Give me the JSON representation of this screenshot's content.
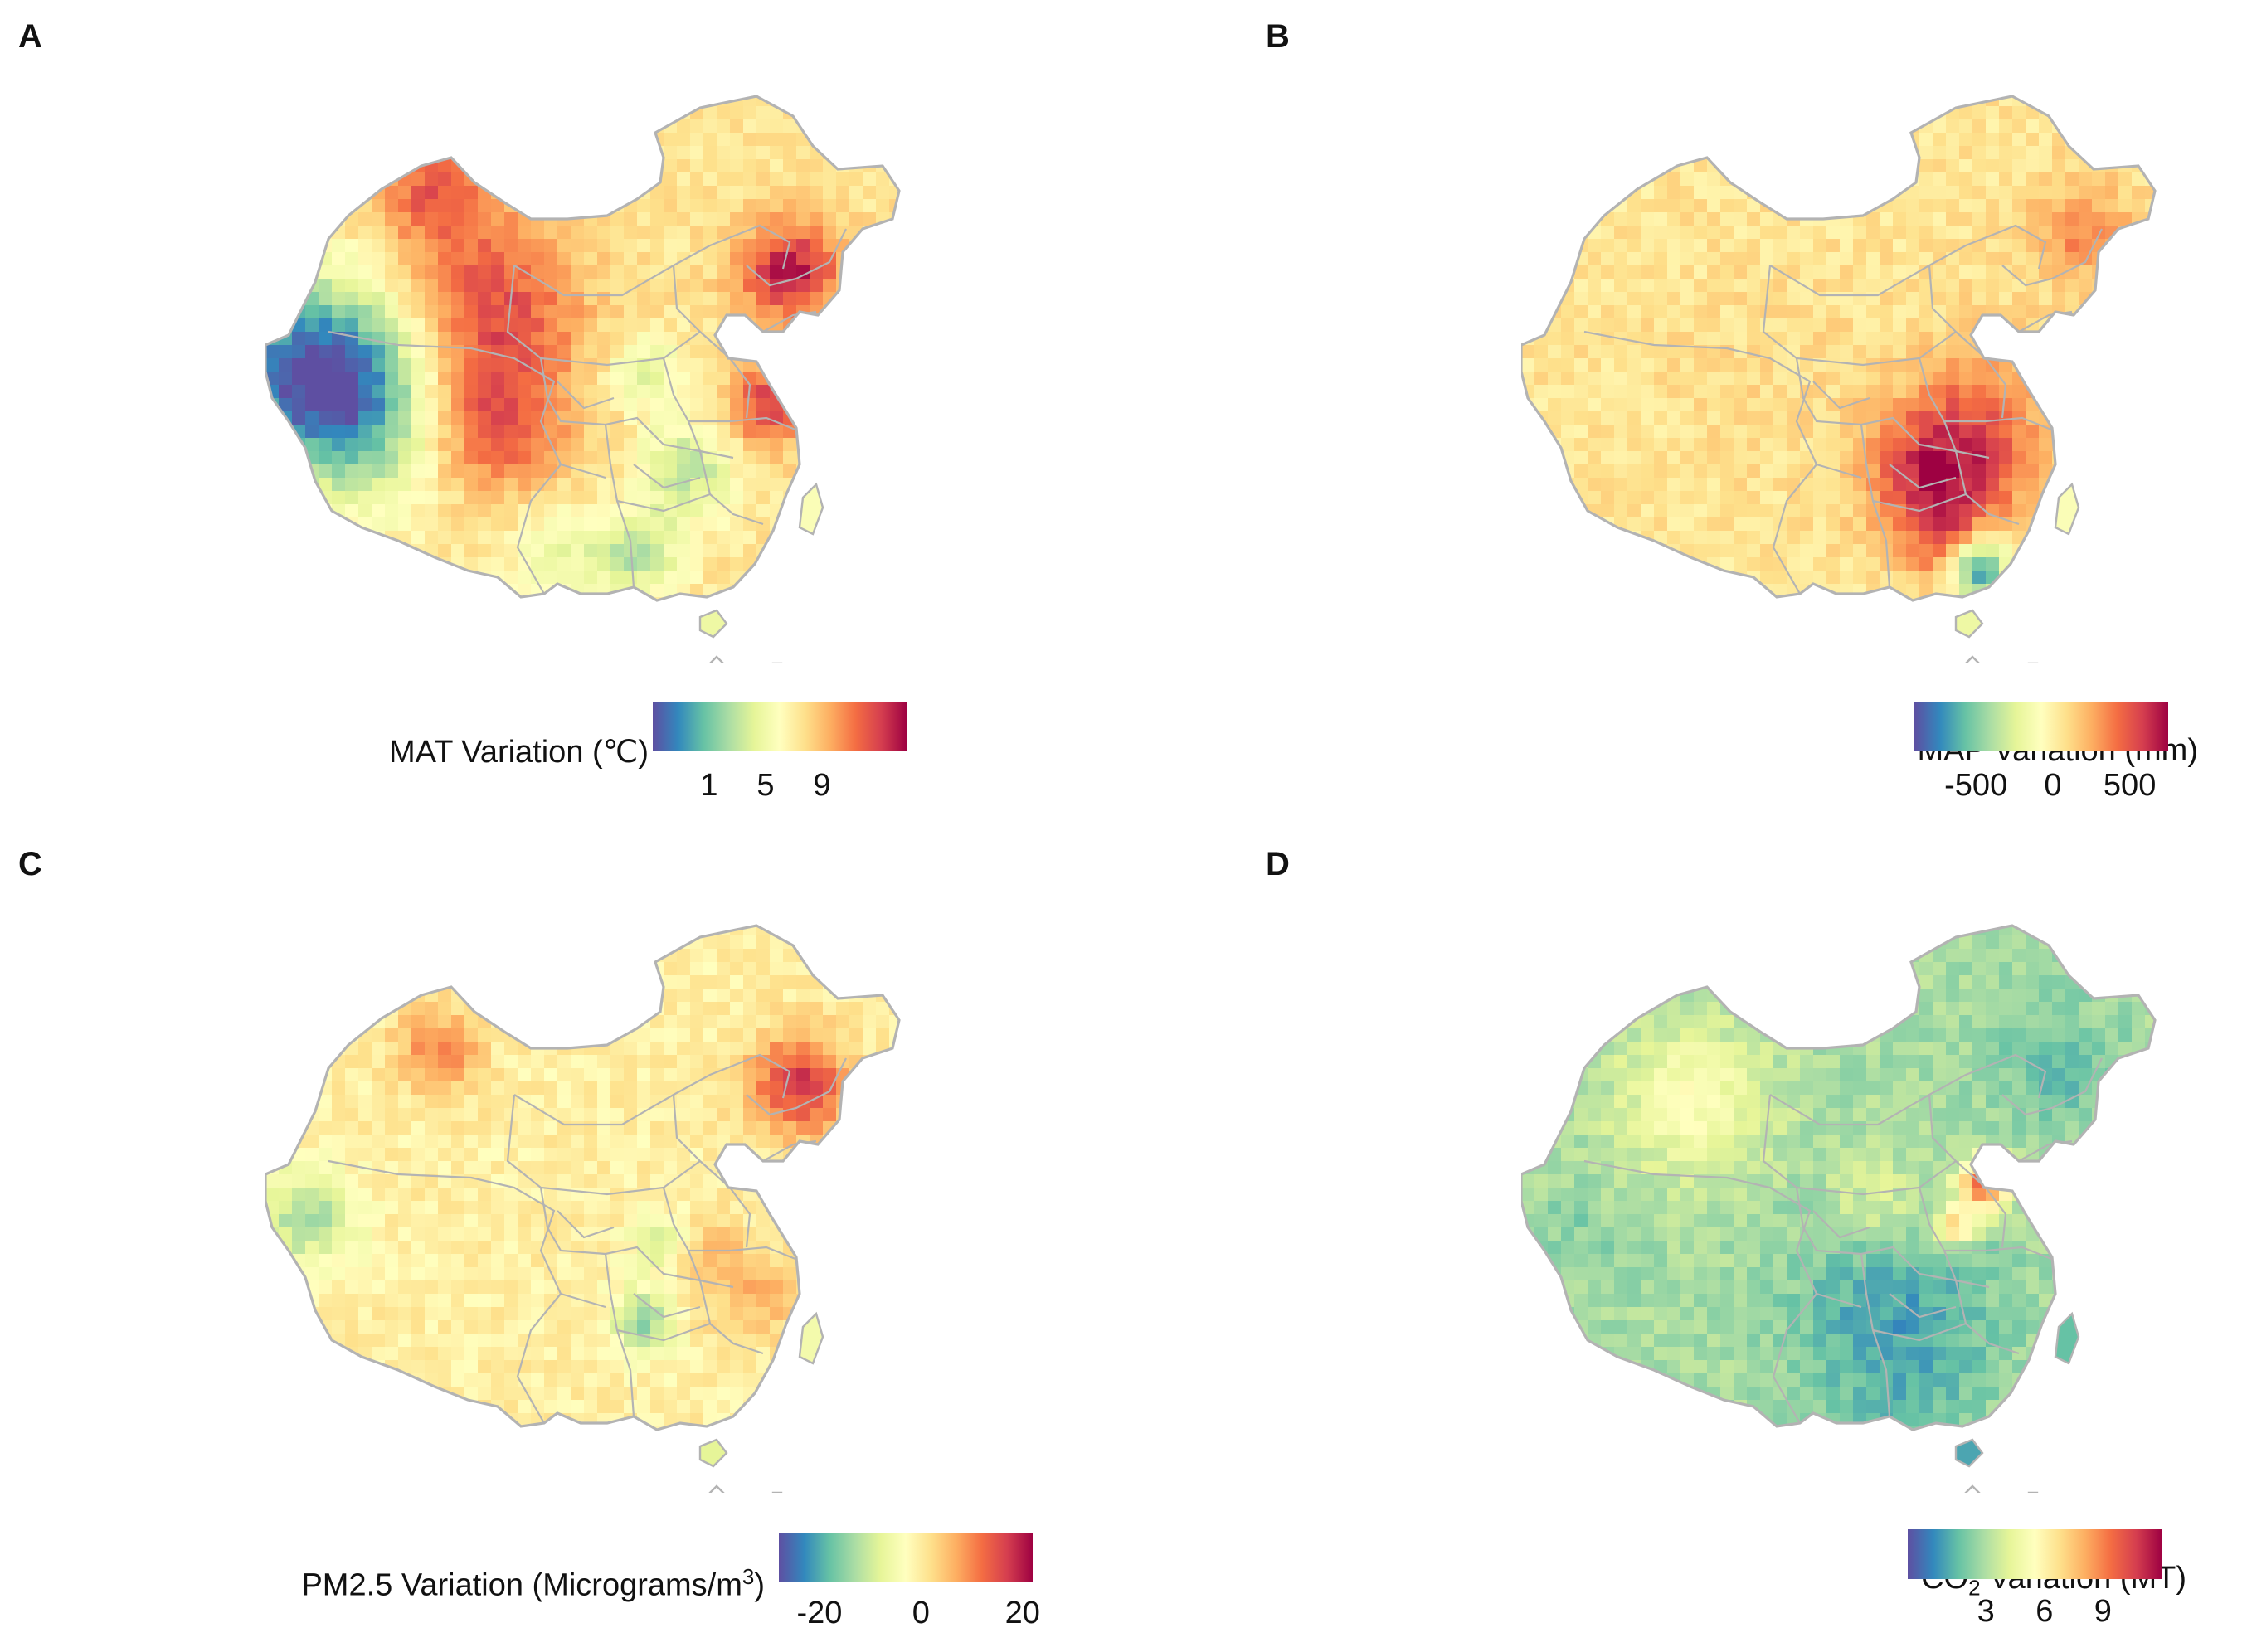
{
  "panels": [
    {
      "letter": "A",
      "legend": {
        "title": "MAT Variation (℃)",
        "title_parts": [],
        "ticks": [
          "1",
          "5",
          "9"
        ],
        "tick_values": [
          1,
          5,
          9
        ],
        "range": [
          -3,
          15
        ]
      },
      "fill_theme": "mat",
      "colormap": [
        "#5e4fa2",
        "#3288bd",
        "#66c2a5",
        "#abdda4",
        "#e6f598",
        "#ffffbf",
        "#fee08b",
        "#fdae61",
        "#f46d43",
        "#d53e4f",
        "#9e0142"
      ]
    },
    {
      "letter": "B",
      "legend": {
        "title": "MAP Variation (mm)",
        "title_parts": [],
        "ticks": [
          "-500",
          "0",
          "500"
        ],
        "tick_values": [
          -500,
          0,
          500
        ],
        "range": [
          -900,
          750
        ]
      },
      "fill_theme": "map",
      "colormap": [
        "#5e4fa2",
        "#3288bd",
        "#66c2a5",
        "#abdda4",
        "#e6f598",
        "#ffffbf",
        "#fee08b",
        "#fdae61",
        "#f46d43",
        "#d53e4f",
        "#9e0142"
      ]
    },
    {
      "letter": "C",
      "legend": {
        "title": "",
        "title_parts": [
          "PM2.5 Variation (Micrograms/m",
          "3",
          ")"
        ],
        "ticks": [
          "-20",
          "0",
          "20"
        ],
        "tick_values": [
          -20,
          0,
          20
        ],
        "range": [
          -28,
          22
        ]
      },
      "fill_theme": "pm",
      "colormap": [
        "#5e4fa2",
        "#3288bd",
        "#66c2a5",
        "#abdda4",
        "#e6f598",
        "#ffffbf",
        "#fee08b",
        "#fdae61",
        "#f46d43",
        "#d53e4f",
        "#9e0142"
      ]
    },
    {
      "letter": "D",
      "legend": {
        "title": "",
        "title_parts": [
          "CO",
          "2",
          " Variation (MT)"
        ],
        "ticks": [
          "3",
          "6",
          "9"
        ],
        "tick_values": [
          3,
          6,
          9
        ],
        "range": [
          -1,
          12
        ]
      },
      "fill_theme": "co2",
      "colormap": [
        "#5e4fa2",
        "#3288bd",
        "#66c2a5",
        "#abdda4",
        "#e6f598",
        "#ffffbf",
        "#fee08b",
        "#fdae61",
        "#f46d43",
        "#d53e4f",
        "#9e0142"
      ]
    }
  ],
  "colors": {
    "border": "#b3b3b3"
  }
}
